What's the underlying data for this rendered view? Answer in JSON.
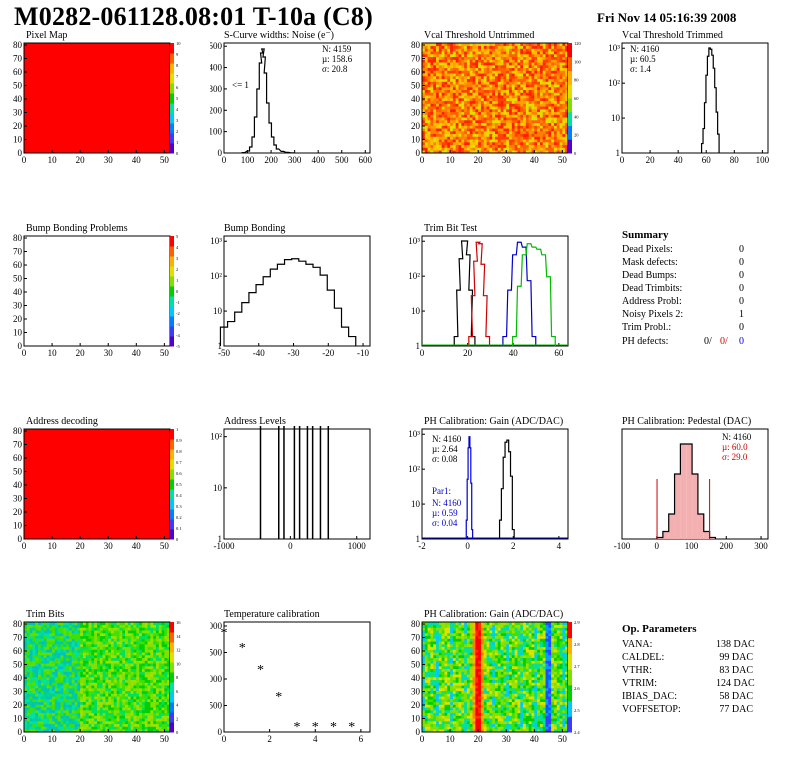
{
  "header": {
    "title": "M0282-061128.08:01 T-10a (C8)",
    "date": "Fri Nov 14 05:16:39 2008"
  },
  "colors": {
    "hist_black": "#000000",
    "hist_red": "#d00000",
    "hist_blue": "#0000cc",
    "hist_green": "#00bb00",
    "map_red": "#ff0000"
  },
  "panels": {
    "pixel_map": {
      "title": "Pixel Map",
      "zmax": "10",
      "xticks": [
        "0",
        "10",
        "20",
        "30",
        "40",
        "50"
      ],
      "yticks": [
        "0",
        "10",
        "20",
        "30",
        "40",
        "50",
        "60",
        "70",
        "80"
      ],
      "zticks": [
        "0",
        "1",
        "2",
        "3",
        "4",
        "5",
        "6",
        "7",
        "8",
        "9",
        "10"
      ]
    },
    "noise": {
      "title": "S-Curve widths: Noise (e⁻)",
      "n": "N: 4159",
      "mu": "µ: 158.6",
      "sigma": "σ: 20.8",
      "underflow": "<= 1",
      "xticks": [
        "0",
        "100",
        "200",
        "300",
        "400",
        "500",
        "600"
      ],
      "yticks": [
        "0",
        "100",
        "200",
        "300",
        "400",
        "500"
      ]
    },
    "vcal_untrimmed": {
      "title": "Vcal Threshold Untrimmed",
      "xticks": [
        "0",
        "10",
        "20",
        "30",
        "40",
        "50"
      ],
      "yticks": [
        "0",
        "10",
        "20",
        "30",
        "40",
        "50",
        "60",
        "70",
        "80"
      ],
      "zticks": [
        "0",
        "20",
        "40",
        "60",
        "80",
        "100",
        "120"
      ]
    },
    "vcal_trimmed": {
      "title": "Vcal Threshold Trimmed",
      "n": "N: 4160",
      "mu": "µ: 60.5",
      "sigma": "σ:  1.4",
      "xticks": [
        "0",
        "20",
        "40",
        "60",
        "80",
        "100"
      ],
      "yticks": [
        "1",
        "10",
        "10²",
        "10³"
      ]
    },
    "bump_problems": {
      "title": "Bump Bonding Problems",
      "xticks": [
        "0",
        "10",
        "20",
        "30",
        "40",
        "50"
      ],
      "yticks": [
        "0",
        "10",
        "20",
        "30",
        "40",
        "50",
        "60",
        "70",
        "80"
      ],
      "zticks": [
        "-5",
        "-4",
        "-3",
        "-2",
        "-1",
        "0",
        "1",
        "2",
        "3",
        "4",
        "5"
      ]
    },
    "bump_bonding": {
      "title": "Bump Bonding",
      "xticks": [
        "-50",
        "-40",
        "-30",
        "-20",
        "-10"
      ],
      "yticks": [
        "1",
        "10",
        "10²",
        "10³"
      ]
    },
    "trim_bit": {
      "title": "Trim Bit Test",
      "xticks": [
        "0",
        "20",
        "40",
        "60"
      ],
      "yticks": [
        "1",
        "10",
        "10²",
        "10³"
      ]
    },
    "address_decoding": {
      "title": "Address decoding",
      "xticks": [
        "0",
        "10",
        "20",
        "30",
        "40",
        "50"
      ],
      "yticks": [
        "0",
        "10",
        "20",
        "30",
        "40",
        "50",
        "60",
        "70",
        "80"
      ],
      "zticks": [
        "0",
        "0.1",
        "0.2",
        "0.3",
        "0.4",
        "0.5",
        "0.6",
        "0.7",
        "0.8",
        "0.9",
        "1"
      ]
    },
    "address_levels": {
      "title": "Address Levels",
      "xticks": [
        "-1000",
        "0",
        "1000"
      ],
      "yticks": [
        "1",
        "10",
        "10²"
      ]
    },
    "ph_gain": {
      "title": "PH Calibration: Gain (ADC/DAC)",
      "n": "N: 4160",
      "mu": "µ: 2.64",
      "sigma": "σ: 0.08",
      "par_label": "Par1:",
      "par_n": "N: 4160",
      "par_mu": "µ: 0.59",
      "par_sigma": "σ: 0.04",
      "xticks": [
        "-2",
        "0",
        "2",
        "4"
      ],
      "yticks": [
        "1",
        "10",
        "10²",
        "10³"
      ]
    },
    "ph_pedestal": {
      "title": "PH Calibration: Pedestal (DAC)",
      "n": "N: 4160",
      "mu": "µ: 60.0",
      "sigma": "σ: 29.0",
      "xticks": [
        "-100",
        "0",
        "100",
        "200",
        "300"
      ]
    },
    "trim_bits": {
      "title": "Trim Bits",
      "xticks": [
        "0",
        "10",
        "20",
        "30",
        "40",
        "50"
      ],
      "yticks": [
        "0",
        "10",
        "20",
        "30",
        "40",
        "50",
        "60",
        "70",
        "80"
      ],
      "zticks": [
        "0",
        "2",
        "4",
        "6",
        "8",
        "10",
        "12",
        "14",
        "16"
      ]
    },
    "temperature": {
      "title": "Temperature calibration",
      "xticks": [
        "0",
        "2",
        "4",
        "6"
      ],
      "yticks": [
        "0",
        "500",
        "1000",
        "1500",
        "2000"
      ]
    },
    "ph_gain_map": {
      "title": "PH Calibration: Gain (ADC/DAC)",
      "xticks": [
        "0",
        "10",
        "20",
        "30",
        "40",
        "50"
      ],
      "yticks": [
        "0",
        "10",
        "20",
        "30",
        "40",
        "50",
        "60",
        "70",
        "80"
      ],
      "zticks": [
        "2.4",
        "2.5",
        "2.6",
        "2.7",
        "2.8",
        "2.9"
      ]
    }
  },
  "summary": {
    "title": "Summary",
    "rows": [
      {
        "label": "Dead Pixels:",
        "value": "0"
      },
      {
        "label": "Mask defects:",
        "value": "0"
      },
      {
        "label": "Dead Bumps:",
        "value": "0"
      },
      {
        "label": "Dead Trimbits:",
        "value": "0"
      },
      {
        "label": "Address Probl:",
        "value": "0"
      },
      {
        "label": "Noisy Pixels 2:",
        "value": "1"
      },
      {
        "label": "Trim Probl.:",
        "value": "0"
      }
    ],
    "ph_label": "PH defects:",
    "ph_values": [
      "0/",
      "0/",
      "0"
    ]
  },
  "op_params": {
    "title": "Op. Parameters",
    "rows": [
      {
        "label": "VANA:",
        "value": "138 DAC"
      },
      {
        "label": "CALDEL:",
        "value": "99 DAC"
      },
      {
        "label": "VTHR:",
        "value": "83 DAC"
      },
      {
        "label": "VTRIM:",
        "value": "124 DAC"
      },
      {
        "label": "IBIAS_DAC:",
        "value": "58 DAC"
      },
      {
        "label": "VOFFSETOP:",
        "value": "77 DAC"
      }
    ]
  },
  "chart_data": [
    {
      "type": "heatmap",
      "title": "Pixel Map",
      "xlim": [
        0,
        52
      ],
      "ylim": [
        0,
        80
      ],
      "zlim": [
        0,
        10
      ],
      "fill_value": 10
    },
    {
      "type": "bar",
      "title": "S-Curve widths: Noise (e⁻)",
      "x": [
        80,
        100,
        110,
        120,
        130,
        140,
        150,
        155,
        160,
        165,
        170,
        180,
        190,
        200,
        210,
        220,
        240,
        260,
        280
      ],
      "values": [
        2,
        10,
        30,
        80,
        180,
        320,
        450,
        500,
        520,
        480,
        400,
        250,
        150,
        80,
        40,
        20,
        8,
        3,
        1
      ],
      "xlim": [
        0,
        600
      ],
      "ylim": [
        0,
        550
      ]
    },
    {
      "type": "heatmap",
      "title": "Vcal Threshold Untrimmed",
      "xlim": [
        0,
        52
      ],
      "ylim": [
        0,
        80
      ],
      "zlim": [
        0,
        130
      ]
    },
    {
      "type": "bar",
      "title": "Vcal Threshold Trimmed",
      "x": [
        55,
        56,
        57,
        58,
        59,
        60,
        61,
        62,
        63,
        64,
        65,
        66
      ],
      "values": [
        1,
        3,
        20,
        150,
        600,
        1100,
        1000,
        650,
        250,
        60,
        10,
        2
      ],
      "xlim": [
        0,
        100
      ],
      "log_y": true
    },
    {
      "type": "heatmap",
      "title": "Bump Bonding Problems",
      "xlim": [
        0,
        52
      ],
      "ylim": [
        0,
        80
      ],
      "zlim": [
        -5,
        5
      ]
    },
    {
      "type": "bar",
      "title": "Bump Bonding",
      "x": [
        -50,
        -48,
        -46,
        -44,
        -42,
        -40,
        -38,
        -36,
        -34,
        -32,
        -30,
        -28,
        -26,
        -24,
        -22,
        -20,
        -18,
        -16,
        -14
      ],
      "values": [
        2,
        3,
        6,
        12,
        25,
        45,
        80,
        140,
        200,
        280,
        300,
        250,
        200,
        160,
        90,
        30,
        8,
        2,
        1
      ],
      "xlim": [
        -50,
        -9
      ],
      "log_y": true
    },
    {
      "type": "line",
      "title": "Trim Bit Test",
      "series": [
        {
          "x": [
            14,
            15,
            16,
            17,
            18,
            19,
            20,
            21
          ],
          "values": [
            1,
            30,
            300,
            1100,
            1100,
            400,
            30,
            1
          ]
        },
        {
          "x": [
            20,
            21,
            22,
            23,
            24,
            25,
            26,
            27
          ],
          "values": [
            1,
            20,
            250,
            1000,
            900,
            200,
            20,
            1
          ]
        },
        {
          "x": [
            34,
            36,
            38,
            40,
            42,
            44,
            46
          ],
          "values": [
            1,
            30,
            400,
            1000,
            700,
            60,
            1
          ]
        },
        {
          "x": [
            38,
            40,
            42,
            44,
            46,
            48,
            50,
            52,
            54
          ],
          "values": [
            1,
            40,
            400,
            900,
            700,
            600,
            400,
            80,
            1
          ]
        }
      ],
      "xlim": [
        0,
        60
      ],
      "log_y": true
    },
    {
      "type": "heatmap",
      "title": "Address decoding",
      "xlim": [
        0,
        52
      ],
      "ylim": [
        0,
        80
      ],
      "zlim": [
        0,
        1
      ],
      "fill_value": 1
    },
    {
      "type": "bar",
      "title": "Address Levels",
      "x": [
        -700,
        -350,
        -250,
        -50,
        50,
        200,
        300,
        450,
        600
      ],
      "values": [
        300,
        250,
        250,
        300,
        300,
        250,
        250,
        250,
        250
      ],
      "xlim": [
        -1400,
        1400
      ],
      "log_y": true
    },
    {
      "type": "bar",
      "title": "PH Calibration: Gain (ADC/DAC)",
      "series": [
        {
          "name": "Par1",
          "x": [
            0.45,
            0.5,
            0.55,
            0.6,
            0.65,
            0.7,
            0.75
          ],
          "values": [
            2,
            40,
            400,
            900,
            400,
            30,
            1
          ]
        },
        {
          "x": [
            2.3,
            2.4,
            2.5,
            2.6,
            2.7,
            2.8,
            2.9,
            3.0
          ],
          "values": [
            2,
            20,
            200,
            600,
            700,
            300,
            50,
            1
          ]
        }
      ],
      "xlim": [
        -2,
        6
      ],
      "log_y": true
    },
    {
      "type": "bar",
      "title": "PH Calibration: Pedestal (DAC)",
      "x": [
        -20,
        0,
        20,
        40,
        60,
        80,
        100,
        120,
        140,
        160
      ],
      "values": [
        3,
        15,
        50,
        130,
        190,
        190,
        130,
        50,
        15,
        3
      ],
      "xlim": [
        -150,
        350
      ]
    },
    {
      "type": "heatmap",
      "title": "Trim Bits",
      "xlim": [
        0,
        52
      ],
      "ylim": [
        0,
        80
      ],
      "zlim": [
        0,
        16
      ]
    },
    {
      "type": "scatter",
      "title": "Temperature calibration",
      "x": [
        0,
        1,
        2,
        3,
        4,
        5,
        6,
        7
      ],
      "values": [
        1800,
        1500,
        1060,
        520,
        -80,
        -80,
        -80,
        -80
      ],
      "xlim": [
        0,
        8
      ],
      "ylim": [
        -200,
        2000
      ]
    },
    {
      "type": "heatmap",
      "title": "PH Calibration: Gain (ADC/DAC)",
      "xlim": [
        0,
        52
      ],
      "ylim": [
        0,
        80
      ],
      "zlim": [
        2.4,
        2.9
      ]
    }
  ]
}
